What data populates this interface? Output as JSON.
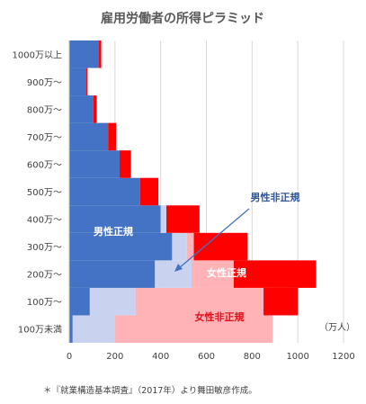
{
  "chart_data": {
    "type": "bar",
    "orientation": "horizontal",
    "stacked": true,
    "title": "雇用労働者の所得ピラミッド",
    "unit_label": "（万人）",
    "source_note": "＊『就業構造基本調査』（2017年）より舞田敏彦作成。",
    "categories": [
      "100万未満",
      "100万～",
      "200万～",
      "300万～",
      "400万～",
      "500万～",
      "600万～",
      "700万～",
      "800万～",
      "900万～",
      "1000万以上"
    ],
    "xlim": [
      0,
      1200
    ],
    "xticks": [
      0,
      200,
      400,
      600,
      800,
      1000,
      1200
    ],
    "grid": true,
    "series": [
      {
        "name": "男性正規",
        "color": "#4472c4",
        "values": [
          15,
          90,
          375,
          450,
          400,
          310,
          220,
          170,
          105,
          75,
          130
        ]
      },
      {
        "name": "男性非正規",
        "color": "#c9d3ef",
        "values": [
          185,
          200,
          160,
          65,
          25,
          0,
          0,
          0,
          0,
          0,
          0
        ]
      },
      {
        "name": "女性非正規",
        "color": "#ffb3b6",
        "values": [
          690,
          560,
          185,
          30,
          0,
          0,
          0,
          0,
          0,
          0,
          0
        ]
      },
      {
        "name": "女性正規",
        "color": "#ff0000",
        "values": [
          0,
          150,
          360,
          235,
          145,
          80,
          50,
          35,
          15,
          5,
          10
        ]
      }
    ],
    "labels": {
      "male_regular": "男性正規",
      "male_nonregular": "男性非正規",
      "female_regular": "女性正規",
      "female_nonregular": "女性非正規"
    }
  }
}
